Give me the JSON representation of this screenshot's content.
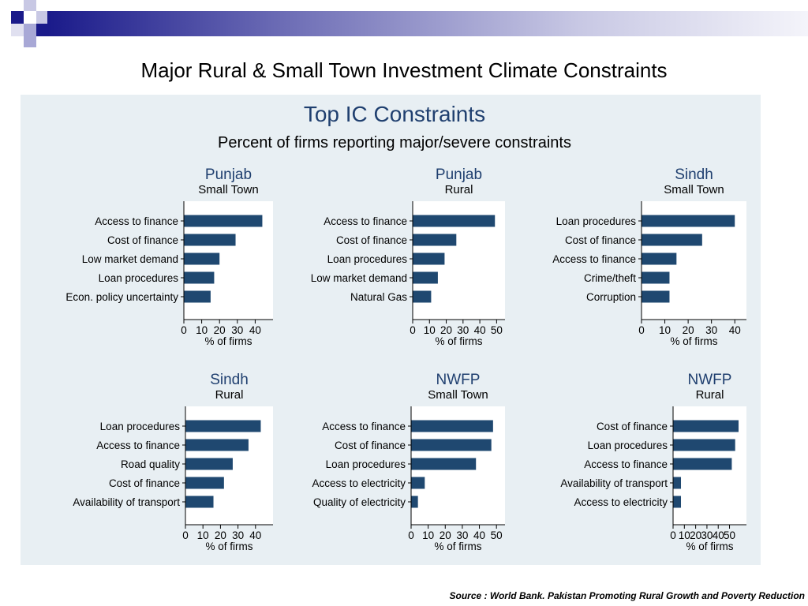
{
  "slide": {
    "title": "Major Rural & Small Town Investment Climate Constraints",
    "source": "Source : World Bank. Pakistan Promoting Rural Growth and Poverty Reduction"
  },
  "colors": {
    "bar": "#1f4870",
    "panel_bg": "#e8eff3",
    "title_blue": "#1f3f6f",
    "deco_dark": "#1a1a8a",
    "deco_light": "#a8a8d6"
  },
  "chart_data": [
    {
      "type": "bar",
      "orientation": "horizontal",
      "title": "Punjab",
      "subtitle": "Small Town",
      "xlabel": "% of firms",
      "categories": [
        "Access to finance",
        "Cost of finance",
        "Low market demand",
        "Loan procedures",
        "Econ. policy uncertainty"
      ],
      "values": [
        44,
        29,
        20,
        17,
        15
      ],
      "xlim": [
        0,
        50
      ],
      "ticks": [
        0,
        10,
        20,
        30,
        40
      ],
      "tick_labels": [
        "0",
        "10",
        "20",
        "30",
        "40"
      ]
    },
    {
      "type": "bar",
      "orientation": "horizontal",
      "title": "Punjab",
      "subtitle": "Rural",
      "xlabel": "% of firms",
      "categories": [
        "Access to finance",
        "Cost of finance",
        "Loan procedures",
        "Low market demand",
        "Natural Gas"
      ],
      "values": [
        49,
        26,
        19,
        15,
        11
      ],
      "xlim": [
        0,
        55
      ],
      "ticks": [
        0,
        10,
        20,
        30,
        40,
        50
      ],
      "tick_labels": [
        "0",
        "10",
        "20",
        "30",
        "40",
        "50"
      ]
    },
    {
      "type": "bar",
      "orientation": "horizontal",
      "title": "Sindh",
      "subtitle": "Small Town",
      "xlabel": "% of firms",
      "categories": [
        "Loan procedures",
        "Cost of finance",
        "Access to finance",
        "Crime/theft",
        "Corruption"
      ],
      "values": [
        40,
        26,
        15,
        12,
        12
      ],
      "xlim": [
        0,
        45
      ],
      "ticks": [
        0,
        10,
        20,
        30,
        40
      ],
      "tick_labels": [
        "0",
        "10",
        "20",
        "30",
        "40"
      ]
    },
    {
      "type": "bar",
      "orientation": "horizontal",
      "title": "Sindh",
      "subtitle": "Rural",
      "xlabel": "% of firms",
      "categories": [
        "Loan procedures",
        "Access to finance",
        "Road quality",
        "Cost of finance",
        "Availability of transport"
      ],
      "values": [
        43,
        36,
        27,
        22,
        16
      ],
      "xlim": [
        0,
        50
      ],
      "ticks": [
        0,
        10,
        20,
        30,
        40
      ],
      "tick_labels": [
        "0",
        "10",
        "20",
        "30",
        "40"
      ]
    },
    {
      "type": "bar",
      "orientation": "horizontal",
      "title": "NWFP",
      "subtitle": "Small Town",
      "xlabel": "% of firms",
      "categories": [
        "Access to finance",
        "Cost of finance",
        "Loan procedures",
        "Access to electricity",
        "Quality of electricity"
      ],
      "values": [
        48,
        47,
        38,
        8,
        4
      ],
      "xlim": [
        0,
        55
      ],
      "ticks": [
        0,
        10,
        20,
        30,
        40,
        50
      ],
      "tick_labels": [
        "0",
        "10",
        "20",
        "30",
        "40",
        "50"
      ]
    },
    {
      "type": "bar",
      "orientation": "horizontal",
      "title": "NWFP",
      "subtitle": "Rural",
      "xlabel": "% of firms",
      "categories": [
        "Cost of finance",
        "Loan procedures",
        "Access to finance",
        "Availability of transport",
        "Access to electricity"
      ],
      "values": [
        58,
        55,
        52,
        7,
        7
      ],
      "xlim": [
        0,
        65
      ],
      "ticks": [
        0,
        10,
        20,
        30,
        40,
        50
      ],
      "tick_labels": [
        "0",
        "10",
        "20",
        "30",
        "40",
        "50"
      ]
    }
  ],
  "header": {
    "title": "Top IC Constraints",
    "subtitle": "Percent of firms reporting major/severe constraints"
  }
}
